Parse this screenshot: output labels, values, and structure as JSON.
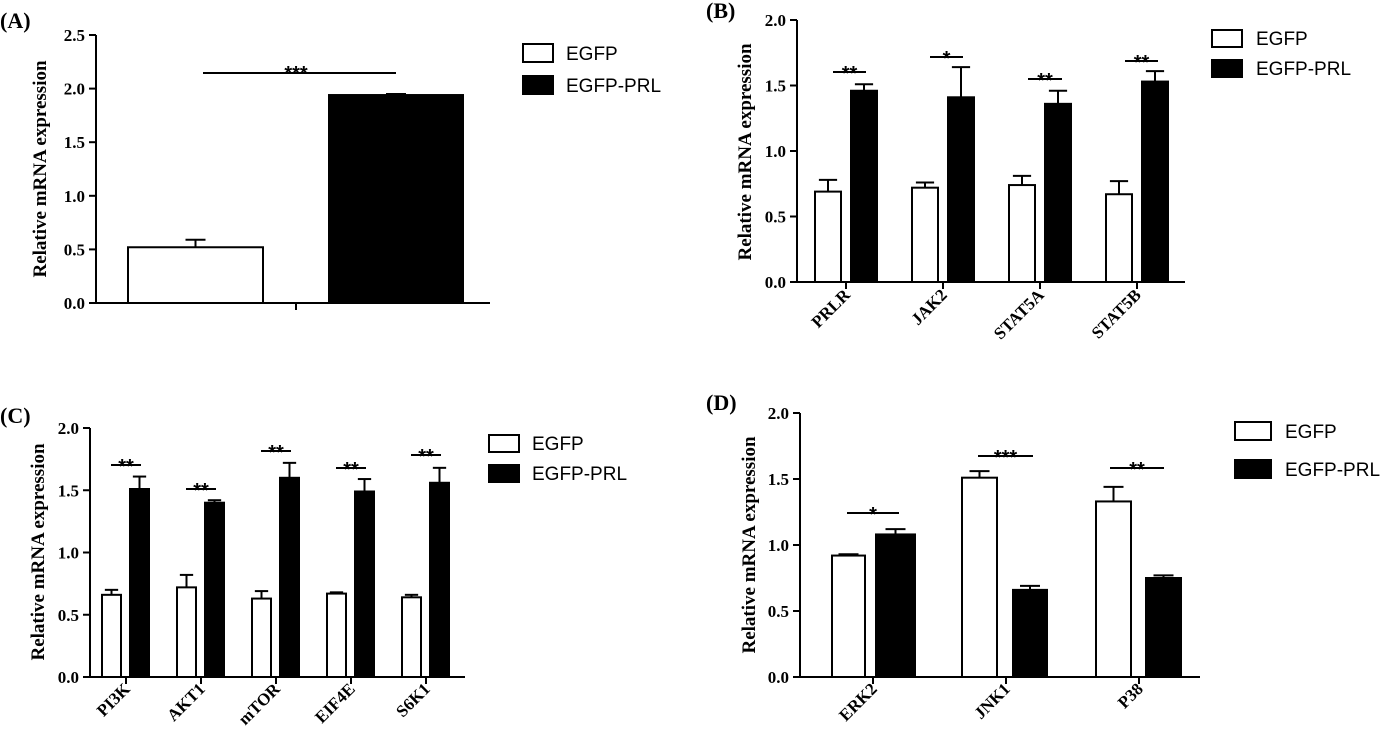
{
  "chart_data": [
    {
      "panel": "(A)",
      "type": "bar",
      "ylabel": "Relative mRNA expression",
      "ylim": [
        0,
        2.5
      ],
      "yticks": [
        "0.0",
        "0.5",
        "1.0",
        "1.5",
        "2.0",
        "2.5"
      ],
      "categories": [
        ""
      ],
      "series": [
        {
          "name": "EGFP",
          "color": "#ffffff",
          "values": [
            0.52
          ],
          "errors": [
            0.07
          ]
        },
        {
          "name": "EGFP-PRL",
          "color": "#000000",
          "values": [
            1.94
          ],
          "errors": [
            0.01
          ]
        }
      ],
      "significance": [
        "***"
      ],
      "legend": "top-right"
    },
    {
      "panel": "(B)",
      "type": "bar",
      "ylabel": "Relative mRNA expression",
      "ylim": [
        0,
        2.0
      ],
      "yticks": [
        "0.0",
        "0.5",
        "1.0",
        "1.5",
        "2.0"
      ],
      "categories": [
        "PRLR",
        "JAK2",
        "STAT5A",
        "STAT5B"
      ],
      "series": [
        {
          "name": "EGFP",
          "color": "#ffffff",
          "values": [
            0.69,
            0.72,
            0.74,
            0.67
          ],
          "errors": [
            0.09,
            0.04,
            0.07,
            0.1
          ]
        },
        {
          "name": "EGFP-PRL",
          "color": "#000000",
          "values": [
            1.46,
            1.41,
            1.36,
            1.53
          ],
          "errors": [
            0.05,
            0.23,
            0.1,
            0.08
          ]
        }
      ],
      "significance": [
        "**",
        "*",
        "**",
        "**"
      ],
      "legend": "top-right"
    },
    {
      "panel": "(C)",
      "type": "bar",
      "ylabel": "Relative mRNA expression",
      "ylim": [
        0,
        2.0
      ],
      "yticks": [
        "0.0",
        "0.5",
        "1.0",
        "1.5",
        "2.0"
      ],
      "categories": [
        "PI3K",
        "AKT1",
        "mTOR",
        "EIF4E",
        "S6K1"
      ],
      "series": [
        {
          "name": "EGFP",
          "color": "#ffffff",
          "values": [
            0.66,
            0.72,
            0.63,
            0.67,
            0.64
          ],
          "errors": [
            0.04,
            0.1,
            0.06,
            0.01,
            0.02
          ]
        },
        {
          "name": "EGFP-PRL",
          "color": "#000000",
          "values": [
            1.51,
            1.4,
            1.6,
            1.49,
            1.56
          ],
          "errors": [
            0.1,
            0.02,
            0.12,
            0.1,
            0.12
          ]
        }
      ],
      "significance": [
        "**",
        "**",
        "**",
        "**",
        "**"
      ],
      "legend": "top-right"
    },
    {
      "panel": "(D)",
      "type": "bar",
      "ylabel": "Relative mRNA expression",
      "ylim": [
        0,
        2.0
      ],
      "yticks": [
        "0.0",
        "0.5",
        "1.0",
        "1.5",
        "2.0"
      ],
      "categories": [
        "ERK2",
        "JNK1",
        "P38"
      ],
      "series": [
        {
          "name": "EGFP",
          "color": "#ffffff",
          "values": [
            0.92,
            1.51,
            1.33
          ],
          "errors": [
            0.01,
            0.05,
            0.11
          ]
        },
        {
          "name": "EGFP-PRL",
          "color": "#000000",
          "values": [
            1.08,
            0.66,
            0.75
          ],
          "errors": [
            0.04,
            0.03,
            0.02
          ]
        }
      ],
      "significance": [
        "*",
        "***",
        "**"
      ],
      "legend": "top-right"
    }
  ]
}
